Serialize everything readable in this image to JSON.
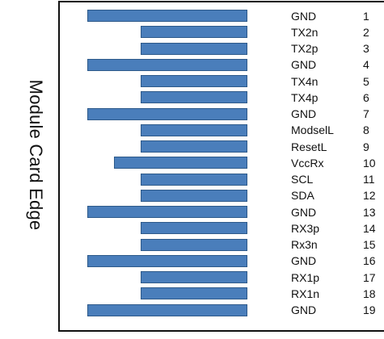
{
  "diagram": {
    "side_label": "Module Card Edge",
    "colors": {
      "pad_fill": "#4a7ebb",
      "pad_border": "#2e5a8a",
      "frame": "#111111",
      "text": "#111111"
    },
    "pins": [
      {
        "number": "1",
        "name": "GND",
        "pad": "long"
      },
      {
        "number": "2",
        "name": "TX2n",
        "pad": "short"
      },
      {
        "number": "3",
        "name": "TX2p",
        "pad": "short"
      },
      {
        "number": "4",
        "name": "GND",
        "pad": "long"
      },
      {
        "number": "5",
        "name": "TX4n",
        "pad": "short"
      },
      {
        "number": "6",
        "name": "TX4p",
        "pad": "short"
      },
      {
        "number": "7",
        "name": "GND",
        "pad": "long"
      },
      {
        "number": "8",
        "name": "ModselL",
        "pad": "short"
      },
      {
        "number": "9",
        "name": "ResetL",
        "pad": "short"
      },
      {
        "number": "10",
        "name": "VccRx",
        "pad": "medium"
      },
      {
        "number": "11",
        "name": "SCL",
        "pad": "short"
      },
      {
        "number": "12",
        "name": "SDA",
        "pad": "short"
      },
      {
        "number": "13",
        "name": "GND",
        "pad": "long"
      },
      {
        "number": "14",
        "name": "RX3p",
        "pad": "short"
      },
      {
        "number": "15",
        "name": "Rx3n",
        "pad": "short"
      },
      {
        "number": "16",
        "name": "GND",
        "pad": "long"
      },
      {
        "number": "17",
        "name": "RX1p",
        "pad": "short"
      },
      {
        "number": "18",
        "name": "RX1n",
        "pad": "short"
      },
      {
        "number": "19",
        "name": "GND",
        "pad": "long"
      }
    ]
  }
}
